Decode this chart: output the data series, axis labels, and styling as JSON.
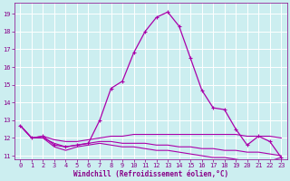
{
  "xlabel": "Windchill (Refroidissement éolien,°C)",
  "bg_color": "#cceef0",
  "grid_color": "#ffffff",
  "line_color": "#aa00aa",
  "xlim": [
    -0.5,
    23.5
  ],
  "ylim": [
    10.8,
    19.6
  ],
  "yticks": [
    11,
    12,
    13,
    14,
    15,
    16,
    17,
    18,
    19
  ],
  "xticks": [
    0,
    1,
    2,
    3,
    4,
    5,
    6,
    7,
    8,
    9,
    10,
    11,
    12,
    13,
    14,
    15,
    16,
    17,
    18,
    19,
    20,
    21,
    22,
    23
  ],
  "line1_x": [
    0,
    1,
    2,
    3,
    4,
    5,
    6,
    7,
    8,
    9,
    10,
    11,
    12,
    13,
    14,
    15,
    16,
    17,
    18,
    19,
    20,
    21,
    22,
    23
  ],
  "line1_y": [
    12.7,
    12.0,
    12.1,
    11.6,
    11.5,
    11.6,
    11.7,
    13.0,
    14.8,
    15.2,
    16.8,
    18.0,
    18.8,
    19.1,
    18.3,
    16.5,
    14.7,
    13.7,
    13.6,
    12.5,
    11.6,
    12.1,
    11.8,
    10.9
  ],
  "line2_x": [
    0,
    1,
    2,
    3,
    4,
    5,
    6,
    7,
    8,
    9,
    10,
    11,
    12,
    13,
    14,
    15,
    16,
    17,
    18,
    19,
    20,
    21,
    22,
    23
  ],
  "line2_y": [
    12.7,
    12.0,
    12.1,
    11.9,
    11.8,
    11.8,
    11.9,
    12.0,
    12.1,
    12.1,
    12.2,
    12.2,
    12.2,
    12.2,
    12.2,
    12.2,
    12.2,
    12.2,
    12.2,
    12.2,
    12.1,
    12.1,
    12.1,
    12.0
  ],
  "line3_x": [
    0,
    1,
    2,
    3,
    4,
    5,
    6,
    7,
    8,
    9,
    10,
    11,
    12,
    13,
    14,
    15,
    16,
    17,
    18,
    19,
    20,
    21,
    22,
    23
  ],
  "line3_y": [
    12.7,
    12.0,
    12.0,
    11.7,
    11.5,
    11.6,
    11.7,
    11.8,
    11.8,
    11.7,
    11.7,
    11.7,
    11.6,
    11.6,
    11.5,
    11.5,
    11.4,
    11.4,
    11.3,
    11.3,
    11.2,
    11.2,
    11.1,
    11.0
  ],
  "line4_x": [
    0,
    1,
    2,
    3,
    4,
    5,
    6,
    7,
    8,
    9,
    10,
    11,
    12,
    13,
    14,
    15,
    16,
    17,
    18,
    19,
    20,
    21,
    22,
    23
  ],
  "line4_y": [
    12.7,
    12.0,
    12.0,
    11.5,
    11.3,
    11.5,
    11.6,
    11.7,
    11.6,
    11.5,
    11.5,
    11.4,
    11.3,
    11.3,
    11.2,
    11.1,
    11.0,
    10.9,
    10.9,
    10.8,
    10.7,
    10.7,
    10.7,
    10.9
  ],
  "font_color": "#880088",
  "tick_fontsize": 5.0,
  "xlabel_fontsize": 5.5
}
